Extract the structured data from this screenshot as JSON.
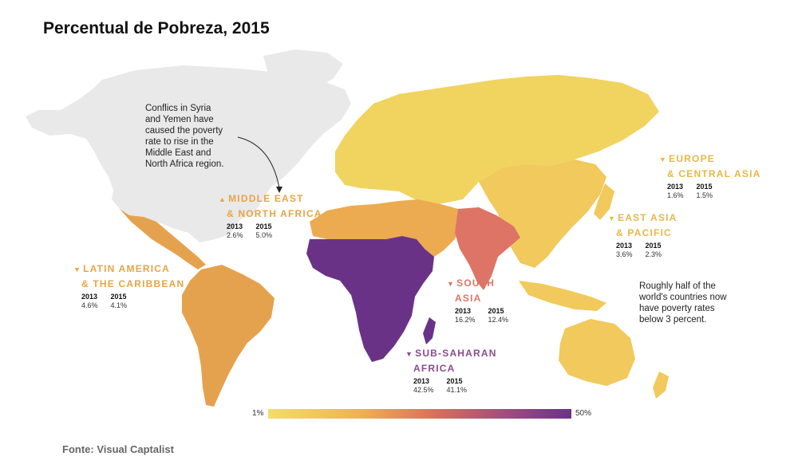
{
  "title": "Percentual de Pobreza, 2015",
  "source": "Fonte: Visual Captalist",
  "colors": {
    "no_data": "#e9e9ea",
    "europe_central_asia": "#f1d35f",
    "east_asia_pacific": "#f1c95c",
    "middle_east_north_africa": "#ecab50",
    "latin_america": "#e5a24e",
    "south_asia": "#de7465",
    "sub_saharan_africa": "#6a3287",
    "europe_label": "#e7b74a",
    "mena_label": "#e8a446",
    "latam_label": "#e8a446",
    "south_asia_label": "#de7465",
    "ssa_label": "#8b4a8e"
  },
  "annotations": {
    "mena_note": [
      "Conflics in Syria",
      "and Yemen have",
      "caused the poverty",
      "rate to rise in the",
      "Middle East and",
      "North Africa region."
    ],
    "half_note": [
      "Roughly half of the",
      "world's countries now",
      "have poverty rates",
      "below 3 percent."
    ]
  },
  "regions": [
    {
      "id": "europe",
      "name": [
        "EUROPE",
        "& CENTRAL ASIA"
      ],
      "y2013": "1.6%",
      "y2015": "1.5%"
    },
    {
      "id": "mena",
      "name": [
        "MIDDLE EAST",
        "& NORTH AFRICA"
      ],
      "y2013": "2.6%",
      "y2015": "5.0%"
    },
    {
      "id": "eap",
      "name": [
        "EAST ASIA",
        "& PACIFIC"
      ],
      "y2013": "3.6%",
      "y2015": "2.3%"
    },
    {
      "id": "latam",
      "name": [
        "LATIN AMERICA",
        "& THE CARIBBEAN"
      ],
      "y2013": "4.6%",
      "y2015": "4.1%"
    },
    {
      "id": "sa",
      "name": [
        "SOUTH",
        "ASIA"
      ],
      "y2013": "16.2%",
      "y2015": "12.4%"
    },
    {
      "id": "ssa",
      "name": [
        "SUB-SAHARAN",
        "AFRICA"
      ],
      "y2013": "42.5%",
      "y2015": "41.1%"
    }
  ],
  "year_labels": {
    "a": "2013",
    "b": "2015"
  },
  "legend": {
    "min": "1%",
    "max": "50%"
  }
}
